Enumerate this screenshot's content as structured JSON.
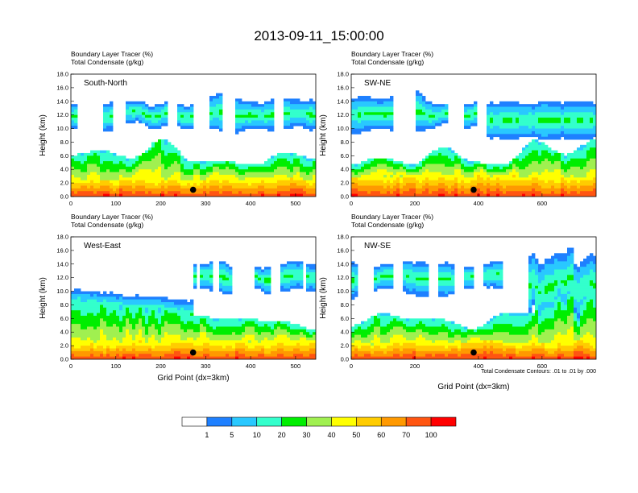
{
  "figure_title": "2013-09-11_15:00:00",
  "colorbar": {
    "colors": [
      "#ffffff",
      "#1e80ff",
      "#29c8ff",
      "#33ffcc",
      "#00ee00",
      "#a0f050",
      "#ffff00",
      "#ffcc00",
      "#ff9900",
      "#ff5511",
      "#ff0000"
    ],
    "labels": [
      "1",
      "5",
      "10",
      "20",
      "30",
      "40",
      "50",
      "60",
      "70",
      "100"
    ]
  },
  "contour_note": "Total Condensate Contours: .01 to .01 by .000",
  "chart_data": [
    {
      "type": "heatmap",
      "panel": "South-North",
      "header_line1": "Boundary Layer Tracer    (%)",
      "header_line2": "Total Condensate    (g/kg)",
      "ylabel": "Height (km)",
      "xlabel": "",
      "xlim": [
        0,
        545
      ],
      "ylim": [
        0,
        18
      ],
      "xticks": [
        "0",
        "100",
        "200",
        "300",
        "400",
        "500"
      ],
      "xtick_values": [
        0,
        100,
        200,
        300,
        400,
        500
      ],
      "yticks": [
        "0.0",
        "2.0",
        "4.0",
        "6.0",
        "8.0",
        "10.0",
        "12.0",
        "14.0",
        "16.0",
        "18.0"
      ],
      "marker_x": 272,
      "marker_y": 1.0,
      "seed": 11
    },
    {
      "type": "heatmap",
      "panel": "SW-NE",
      "header_line1": "Boundary Layer Tracer    (%)",
      "header_line2": "Total Condensate    (g/kg)",
      "ylabel": "Height (km)",
      "xlabel": "",
      "xlim": [
        0,
        770
      ],
      "ylim": [
        0,
        18
      ],
      "xticks": [
        "0",
        "200",
        "400",
        "600"
      ],
      "xtick_values": [
        0,
        200,
        400,
        600
      ],
      "yticks": [
        "0.0",
        "2.0",
        "4.0",
        "6.0",
        "8.0",
        "10.0",
        "12.0",
        "14.0",
        "16.0",
        "18.0"
      ],
      "marker_x": 385,
      "marker_y": 1.0,
      "seed": 23
    },
    {
      "type": "heatmap",
      "panel": "West-East",
      "header_line1": "Boundary Layer Tracer    (%)",
      "header_line2": "Total Condensate    (g/kg)",
      "ylabel": "Height (km)",
      "xlabel": "Grid Point (dx=3km)",
      "xlim": [
        0,
        545
      ],
      "ylim": [
        0,
        18
      ],
      "xticks": [
        "0",
        "100",
        "200",
        "300",
        "400",
        "500"
      ],
      "xtick_values": [
        0,
        100,
        200,
        300,
        400,
        500
      ],
      "yticks": [
        "0.0",
        "2.0",
        "4.0",
        "6.0",
        "8.0",
        "10.0",
        "12.0",
        "14.0",
        "16.0",
        "18.0"
      ],
      "marker_x": 272,
      "marker_y": 1.0,
      "seed": 37
    },
    {
      "type": "heatmap",
      "panel": "NW-SE",
      "header_line1": "Boundary Layer Tracer    (%)",
      "header_line2": "Total Condensate    (g/kg)",
      "ylabel": "Height (km)",
      "xlabel": "Grid Point (dx=3km)",
      "xlim": [
        0,
        770
      ],
      "ylim": [
        0,
        18
      ],
      "xticks": [
        "0",
        "200",
        "400",
        "600"
      ],
      "xtick_values": [
        0,
        200,
        400,
        600
      ],
      "yticks": [
        "0.0",
        "2.0",
        "4.0",
        "6.0",
        "8.0",
        "10.0",
        "12.0",
        "14.0",
        "16.0",
        "18.0"
      ],
      "marker_x": 385,
      "marker_y": 1.0,
      "seed": 53
    }
  ]
}
